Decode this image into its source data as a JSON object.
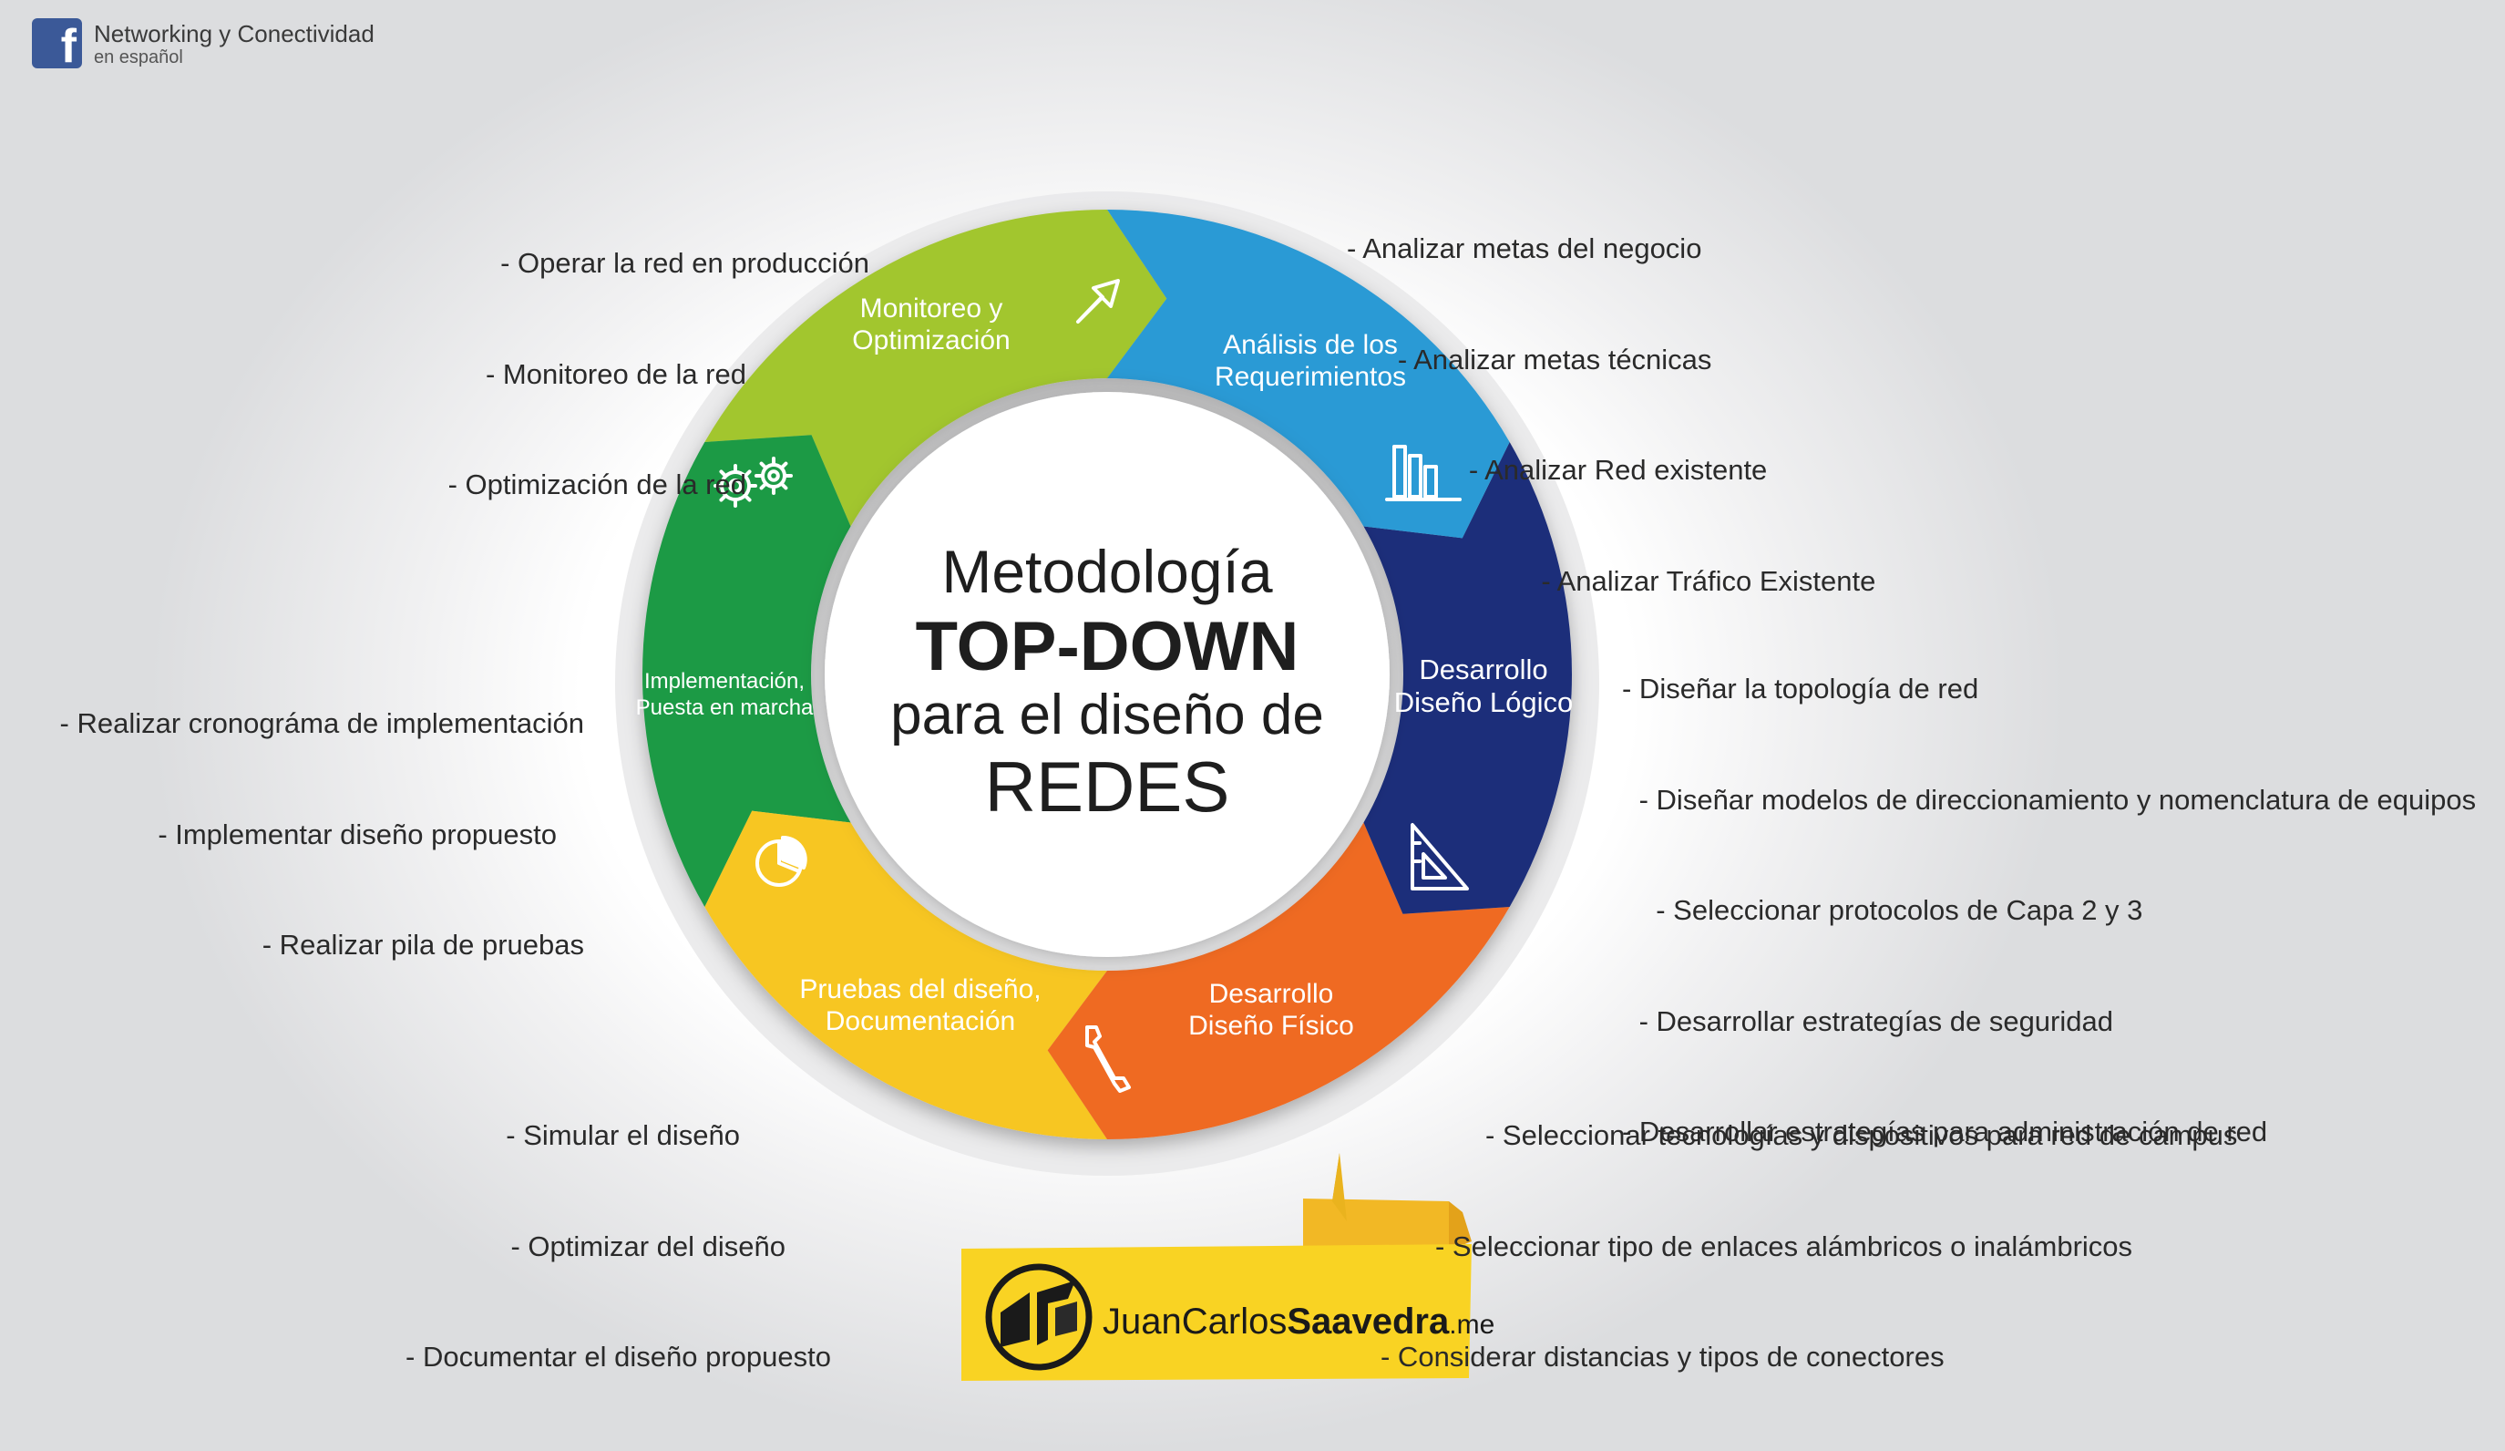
{
  "header": {
    "brand_name": "Networking y Conectividad",
    "brand_sub": "en español",
    "logo_icon": "facebook-icon"
  },
  "center": {
    "line1": "Metodología",
    "line2": "TOP-DOWN",
    "line3": "para el diseño de",
    "line4": "REDES"
  },
  "segments": [
    {
      "id": "analisis",
      "color": "#2a9ad5",
      "label_lines": [
        "Análisis de los",
        "Requerimientos"
      ],
      "icon": "bar-chart-icon"
    },
    {
      "id": "logico",
      "color": "#1e2f7a",
      "label_lines": [
        "Desarrollo",
        "Diseño Lógico"
      ],
      "icon": "set-square-icon"
    },
    {
      "id": "fisico",
      "color": "#ef6b24",
      "label_lines": [
        "Desarrollo",
        "Diseño Físico"
      ],
      "icon": "wrench-icon"
    },
    {
      "id": "pruebas",
      "color": "#f7c623",
      "label_lines": [
        "Pruebas del diseño,",
        "Documentación"
      ],
      "icon": "pie-chart-icon"
    },
    {
      "id": "implementacion",
      "color": "#1d9a45",
      "label_lines": [
        "Implementación,",
        "Puesta en marcha"
      ],
      "icon": "gears-icon"
    },
    {
      "id": "monitoreo",
      "color": "#a2c62e",
      "label_lines": [
        "Monitoreo y",
        "Optimización"
      ],
      "icon": "arrow-up-right-icon"
    }
  ],
  "notes": {
    "analisis": [
      "- Analizar metas del negocio",
      "   - Analizar metas técnicas",
      "        - Analizar Red existente",
      "            - Analizar Tráfico Existente"
    ],
    "logico": [
      "- Diseñar la topología de red",
      " - Diseñar modelos de direccionamiento y nomenclatura de equipos",
      "  - Seleccionar protocolos de Capa 2 y 3",
      " - Desarrollar estrategías de seguridad",
      "- Desarrollar estrategías para administración de red"
    ],
    "fisico": [
      "- Seleccionar tecnologías y dispositivos para red de campus",
      "- Seleccionar tipo de enlaces alámbricos o inalámbricos",
      "- Considerar distancias y tipos de conectores"
    ],
    "pruebas": [
      "- Simular el diseño",
      "- Optimizar del diseño",
      "- Documentar el diseño propuesto"
    ],
    "implementacion": [
      "- Realizar cronográma de implementación",
      "- Implementar diseño propuesto",
      "- Realizar pila de pruebas"
    ],
    "monitoreo": [
      "- Operar la red en producción",
      "- Monitoreo de la red",
      "- Optimización de la red"
    ]
  },
  "author_logo": {
    "name_regular": "JuanCarlos",
    "name_bold": "Saavedra",
    "suffix": ".me",
    "icon": "jcs-monogram-icon"
  }
}
